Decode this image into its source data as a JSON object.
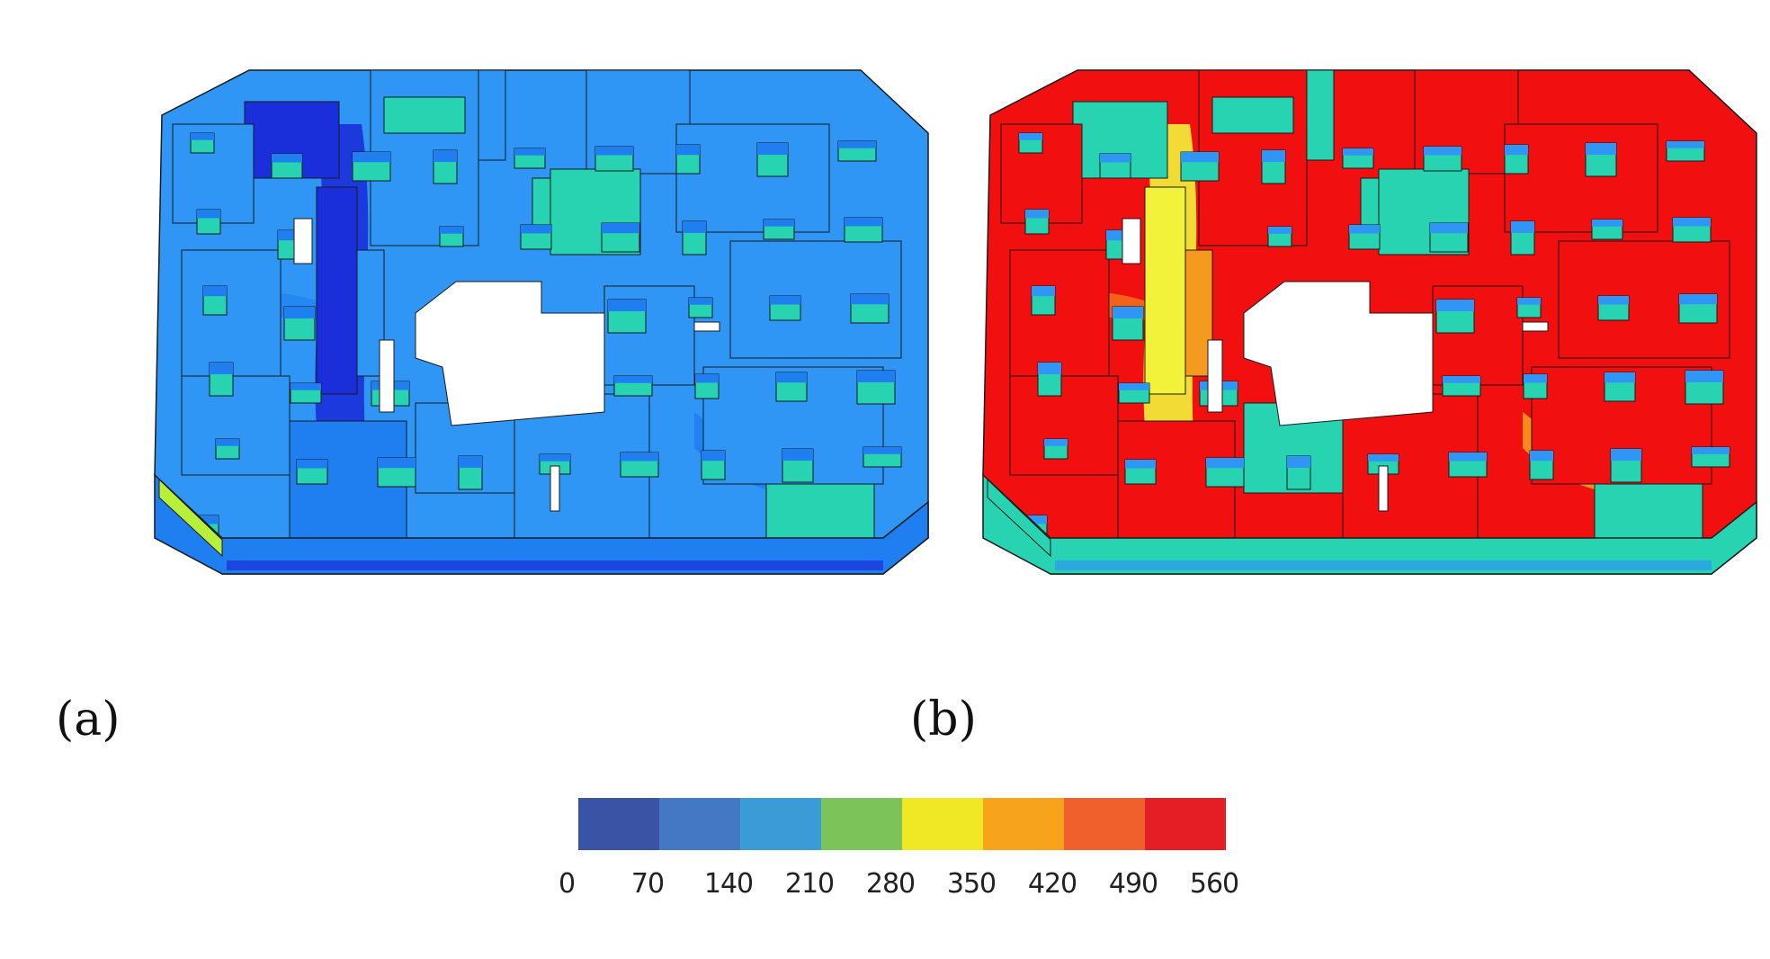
{
  "panels": [
    {
      "label": "(a)",
      "scheme": "low"
    },
    {
      "label": "(b)",
      "scheme": "high"
    }
  ],
  "colorbar": {
    "ticks": [
      "0",
      "70",
      "140",
      "210",
      "280",
      "350",
      "420",
      "490",
      "560"
    ],
    "colors": [
      "#3b53a4",
      "#4477c4",
      "#3a9bd6",
      "#7cc35a",
      "#f0e825",
      "#f7a41c",
      "#f0602c",
      "#e41e24"
    ]
  },
  "palette": {
    "deep_blue": "#1a2fd9",
    "blue": "#1f7ff0",
    "light_blue": "#2f96f5",
    "teal": "#27d3b0",
    "green_yellow": "#b7f03a",
    "yellow": "#f2f23a",
    "orange": "#f39a1f",
    "red": "#f20f10",
    "outline": "#1a1a1a"
  }
}
